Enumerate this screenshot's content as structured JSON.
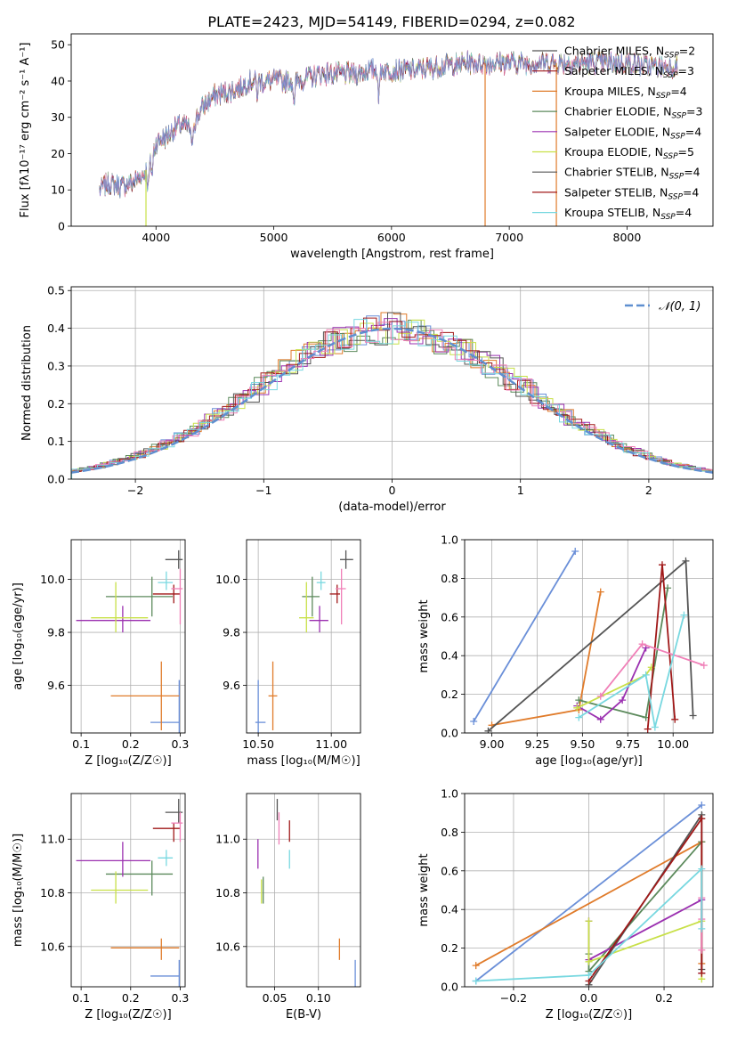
{
  "title": "PLATE=2423, MJD=54149, FIBERID=0294, z=0.082",
  "colors": [
    "#6a8fd8",
    "#e07b2a",
    "#5c8a5c",
    "#9b30b0",
    "#c8e048",
    "#555555",
    "#a01818",
    "#f080b8",
    "#78d8e0"
  ],
  "chart_data": [
    {
      "id": "spectrum",
      "type": "line",
      "xlabel": "wavelength [Angstrom, rest frame]",
      "ylabel": "Flux [fλ10⁻¹⁷ erg cm⁻² s⁻¹ A⁻¹]",
      "xlim": [
        3280,
        8730
      ],
      "ylim": [
        0,
        53
      ],
      "xticks": [
        4000,
        5000,
        6000,
        7000,
        8000
      ],
      "yticks": [
        0,
        10,
        20,
        30,
        40,
        50
      ],
      "grid": false,
      "legend_position": "right",
      "legend": [
        {
          "label": "Chabrier MILES, N",
          "sub": "SSP",
          "tail": "=2",
          "color": "#555555"
        },
        {
          "label": "Salpeter MILES, N",
          "sub": "SSP",
          "tail": "=3",
          "color": "#a01818"
        },
        {
          "label": "Kroupa MILES, N",
          "sub": "SSP",
          "tail": "=4",
          "color": "#e07b2a"
        },
        {
          "label": "Chabrier ELODIE, N",
          "sub": "SSP",
          "tail": "=3",
          "color": "#5c8a5c"
        },
        {
          "label": "Salpeter ELODIE, N",
          "sub": "SSP",
          "tail": "=4",
          "color": "#9b30b0"
        },
        {
          "label": "Kroupa ELODIE, N",
          "sub": "SSP",
          "tail": "=5",
          "color": "#c8e048"
        },
        {
          "label": "Chabrier STELIB, N",
          "sub": "SSP",
          "tail": "=4",
          "color": "#555555"
        },
        {
          "label": "Salpeter STELIB, N",
          "sub": "SSP",
          "tail": "=4",
          "color": "#a01818"
        },
        {
          "label": "Kroupa STELIB, N",
          "sub": "SSP",
          "tail": "=4",
          "color": "#78d8e0"
        }
      ],
      "continuum": [
        [
          3520,
          10
        ],
        [
          3600,
          12
        ],
        [
          3700,
          11
        ],
        [
          3800,
          12
        ],
        [
          3880,
          14
        ],
        [
          3950,
          17
        ],
        [
          4000,
          23
        ],
        [
          4100,
          25
        ],
        [
          4200,
          28
        ],
        [
          4300,
          27
        ],
        [
          4400,
          33
        ],
        [
          4500,
          36
        ],
        [
          4600,
          37
        ],
        [
          4700,
          38
        ],
        [
          4800,
          40
        ],
        [
          4900,
          40
        ],
        [
          5000,
          40
        ],
        [
          5100,
          40
        ],
        [
          5200,
          40
        ],
        [
          5300,
          41
        ],
        [
          5400,
          42
        ],
        [
          5500,
          42
        ],
        [
          5600,
          42
        ],
        [
          5700,
          42
        ],
        [
          5800,
          43
        ],
        [
          5900,
          43
        ],
        [
          6000,
          43
        ],
        [
          6200,
          43
        ],
        [
          6400,
          44
        ],
        [
          6600,
          45
        ],
        [
          6800,
          45
        ],
        [
          7000,
          45
        ],
        [
          7200,
          45
        ],
        [
          7400,
          45
        ],
        [
          7600,
          45
        ],
        [
          7800,
          45
        ],
        [
          8000,
          45
        ],
        [
          8200,
          44
        ],
        [
          8430,
          44
        ]
      ],
      "absorption": [
        [
          3933,
          -6
        ],
        [
          3968,
          -5
        ],
        [
          4304,
          -7
        ],
        [
          4861,
          -4
        ],
        [
          5175,
          -8
        ],
        [
          5893,
          -9
        ],
        [
          6563,
          -2
        ]
      ],
      "dropouts": [
        [
          3915,
          "#c8e048"
        ],
        [
          6795,
          "#e07b2a"
        ],
        [
          7400,
          "#e07b2a"
        ]
      ]
    },
    {
      "id": "residuals",
      "type": "area",
      "xlabel": "(data-model)/error",
      "ylabel": "Normed distribution",
      "xlim": [
        -2.5,
        2.5
      ],
      "ylim": [
        0,
        0.51
      ],
      "xticks": [
        -2,
        -1,
        0,
        1,
        2
      ],
      "yticks": [
        0.0,
        0.1,
        0.2,
        0.3,
        0.4,
        0.5
      ],
      "grid": true,
      "legend": [
        {
          "label": "𝒩(0, 1)",
          "color": "#5f8fd0"
        }
      ],
      "legend_position": "top-right",
      "bin_width": 0.1
    },
    {
      "id": "age-vs-z",
      "type": "scatter",
      "xlabel": "Z [log₁₀(Z/Z☉)]",
      "ylabel": "age  [log₁₀(age/yr)]",
      "xlim": [
        0.08,
        0.31
      ],
      "ylim": [
        9.42,
        10.15
      ],
      "xticks": [
        0.1,
        0.2,
        0.3
      ],
      "yticks": [
        9.6,
        9.8,
        10.0
      ],
      "grid": true,
      "points": [
        {
          "x": 0.298,
          "y": 9.46,
          "xlo": 0.24,
          "xhi": 0.298,
          "ylo": 9.3,
          "yhi": 9.62,
          "c": 0
        },
        {
          "x": 0.262,
          "y": 9.56,
          "xlo": 0.16,
          "xhi": 0.298,
          "ylo": 9.43,
          "yhi": 9.69,
          "c": 1
        },
        {
          "x": 0.243,
          "y": 9.935,
          "xlo": 0.15,
          "xhi": 0.285,
          "ylo": 9.86,
          "yhi": 10.01,
          "c": 2
        },
        {
          "x": 0.184,
          "y": 9.845,
          "xlo": 0.09,
          "xhi": 0.24,
          "ylo": 9.8,
          "yhi": 9.9,
          "c": 3
        },
        {
          "x": 0.17,
          "y": 9.855,
          "xlo": 0.12,
          "xhi": 0.235,
          "ylo": 9.8,
          "yhi": 9.99,
          "c": 4
        },
        {
          "x": 0.297,
          "y": 10.075,
          "xlo": 0.27,
          "xhi": 0.305,
          "ylo": 10.04,
          "yhi": 10.11,
          "c": 5
        },
        {
          "x": 0.287,
          "y": 9.945,
          "xlo": 0.245,
          "xhi": 0.3,
          "ylo": 9.91,
          "yhi": 9.98,
          "c": 6
        },
        {
          "x": 0.3,
          "y": 9.965,
          "xlo": 0.282,
          "xhi": 0.305,
          "ylo": 9.83,
          "yhi": 10.04,
          "c": 7
        },
        {
          "x": 0.272,
          "y": 9.988,
          "xlo": 0.255,
          "xhi": 0.285,
          "ylo": 9.96,
          "yhi": 10.03,
          "c": 8
        }
      ]
    },
    {
      "id": "age-vs-mass",
      "type": "scatter",
      "xlabel": "mass [log₁₀(M/M☉)]",
      "ylabel": "",
      "xlim": [
        10.42,
        11.2
      ],
      "ylim": [
        9.42,
        10.15
      ],
      "xticks": [
        10.5,
        11.0
      ],
      "yticks": [
        9.6,
        9.8,
        10.0
      ],
      "grid": true,
      "points": [
        {
          "x": 10.5,
          "y": 9.46,
          "xlo": 10.48,
          "xhi": 10.55,
          "ylo": 9.31,
          "yhi": 9.62,
          "c": 0
        },
        {
          "x": 10.6,
          "y": 9.56,
          "xlo": 10.57,
          "xhi": 10.63,
          "ylo": 9.43,
          "yhi": 9.69,
          "c": 1
        },
        {
          "x": 10.87,
          "y": 9.935,
          "xlo": 10.8,
          "xhi": 10.92,
          "ylo": 9.86,
          "yhi": 10.01,
          "c": 2
        },
        {
          "x": 10.92,
          "y": 9.845,
          "xlo": 10.85,
          "xhi": 10.98,
          "ylo": 9.8,
          "yhi": 9.9,
          "c": 3
        },
        {
          "x": 10.83,
          "y": 9.855,
          "xlo": 10.78,
          "xhi": 10.88,
          "ylo": 9.8,
          "yhi": 9.99,
          "c": 4
        },
        {
          "x": 11.1,
          "y": 10.075,
          "xlo": 11.06,
          "xhi": 11.15,
          "ylo": 10.04,
          "yhi": 10.11,
          "c": 5
        },
        {
          "x": 11.04,
          "y": 9.945,
          "xlo": 10.99,
          "xhi": 11.06,
          "ylo": 9.91,
          "yhi": 9.98,
          "c": 6
        },
        {
          "x": 11.07,
          "y": 9.965,
          "xlo": 11.03,
          "xhi": 11.1,
          "ylo": 9.83,
          "yhi": 10.04,
          "c": 7
        },
        {
          "x": 10.93,
          "y": 9.988,
          "xlo": 10.9,
          "xhi": 10.96,
          "ylo": 9.96,
          "yhi": 10.03,
          "c": 8
        }
      ]
    },
    {
      "id": "mass-weight-vs-age",
      "type": "line",
      "xlabel": "age  [log₁₀(age/yr)]",
      "ylabel": "mass weight",
      "xlim": [
        8.85,
        10.22
      ],
      "ylim": [
        0,
        1.0
      ],
      "xticks": [
        9.0,
        9.25,
        9.5,
        9.75,
        10.0
      ],
      "yticks": [
        0.0,
        0.2,
        0.4,
        0.6,
        0.8,
        1.0
      ],
      "grid": true,
      "series": [
        {
          "c": 0,
          "points": [
            [
              8.9,
              0.06
            ],
            [
              9.46,
              0.94
            ]
          ]
        },
        {
          "c": 1,
          "points": [
            [
              9.0,
              0.04
            ],
            [
              9.48,
              0.12
            ],
            [
              9.6,
              0.73
            ]
          ]
        },
        {
          "c": 2,
          "points": [
            [
              9.48,
              0.17
            ],
            [
              9.85,
              0.08
            ],
            [
              9.97,
              0.75
            ]
          ]
        },
        {
          "c": 3,
          "points": [
            [
              9.47,
              0.14
            ],
            [
              9.6,
              0.07
            ],
            [
              9.72,
              0.17
            ],
            [
              9.85,
              0.44
            ]
          ]
        },
        {
          "c": 4,
          "points": [
            [
              9.47,
              0.13
            ],
            [
              9.85,
              0.3
            ],
            [
              9.88,
              0.34
            ]
          ]
        },
        {
          "c": 5,
          "points": [
            [
              8.98,
              0.01
            ],
            [
              10.07,
              0.89
            ],
            [
              10.11,
              0.09
            ]
          ]
        },
        {
          "c": 6,
          "points": [
            [
              9.86,
              0.02
            ],
            [
              9.94,
              0.87
            ],
            [
              10.01,
              0.07
            ]
          ]
        },
        {
          "c": 7,
          "points": [
            [
              9.6,
              0.19
            ],
            [
              9.83,
              0.46
            ],
            [
              10.17,
              0.35
            ]
          ]
        },
        {
          "c": 8,
          "points": [
            [
              9.48,
              0.08
            ],
            [
              9.85,
              0.3
            ],
            [
              9.9,
              0.03
            ],
            [
              10.06,
              0.61
            ]
          ]
        }
      ]
    },
    {
      "id": "mass-vs-z",
      "type": "scatter",
      "xlabel": "Z [log₁₀(Z/Z☉)]",
      "ylabel": "mass [log₁₀(M/M☉)]",
      "xlim": [
        0.08,
        0.31
      ],
      "ylim": [
        10.45,
        11.17
      ],
      "xticks": [
        0.1,
        0.2,
        0.3
      ],
      "yticks": [
        10.6,
        10.8,
        11.0
      ],
      "grid": true,
      "points": [
        {
          "x": 0.298,
          "y": 10.49,
          "xlo": 0.24,
          "xhi": 0.298,
          "ylo": 10.45,
          "yhi": 10.55,
          "c": 0
        },
        {
          "x": 0.262,
          "y": 10.595,
          "xlo": 0.16,
          "xhi": 0.298,
          "ylo": 10.55,
          "yhi": 10.63,
          "c": 1
        },
        {
          "x": 0.243,
          "y": 10.87,
          "xlo": 0.15,
          "xhi": 0.285,
          "ylo": 10.79,
          "yhi": 10.92,
          "c": 2
        },
        {
          "x": 0.184,
          "y": 10.92,
          "xlo": 0.09,
          "xhi": 0.24,
          "ylo": 10.86,
          "yhi": 10.99,
          "c": 3
        },
        {
          "x": 0.17,
          "y": 10.81,
          "xlo": 0.12,
          "xhi": 0.235,
          "ylo": 10.76,
          "yhi": 10.88,
          "c": 4
        },
        {
          "x": 0.297,
          "y": 11.1,
          "xlo": 0.27,
          "xhi": 0.305,
          "ylo": 11.06,
          "yhi": 11.15,
          "c": 5
        },
        {
          "x": 0.287,
          "y": 11.04,
          "xlo": 0.245,
          "xhi": 0.3,
          "ylo": 10.99,
          "yhi": 11.06,
          "c": 6
        },
        {
          "x": 0.3,
          "y": 11.06,
          "xlo": 0.282,
          "xhi": 0.305,
          "ylo": 10.99,
          "yhi": 11.1,
          "c": 7
        },
        {
          "x": 0.272,
          "y": 10.93,
          "xlo": 0.255,
          "xhi": 0.285,
          "ylo": 10.9,
          "yhi": 10.96,
          "c": 8
        }
      ]
    },
    {
      "id": "mass-vs-ebv",
      "type": "scatter",
      "xlabel": "E(B-V)",
      "ylabel": "",
      "xlim": [
        0.018,
        0.148
      ],
      "ylim": [
        10.45,
        11.17
      ],
      "xticks": [
        0.05,
        0.1
      ],
      "yticks": [
        10.6,
        10.8,
        11.0
      ],
      "grid": true,
      "points": [
        {
          "x": 0.142,
          "y": 10.5,
          "ylo": 10.45,
          "yhi": 10.55,
          "c": 0
        },
        {
          "x": 0.124,
          "y": 10.59,
          "ylo": 10.55,
          "yhi": 10.63,
          "c": 1
        },
        {
          "x": 0.037,
          "y": 10.8,
          "ylo": 10.76,
          "yhi": 10.86,
          "c": 2
        },
        {
          "x": 0.031,
          "y": 10.93,
          "ylo": 10.89,
          "yhi": 11.0,
          "c": 3
        },
        {
          "x": 0.035,
          "y": 10.79,
          "ylo": 10.76,
          "yhi": 10.85,
          "c": 4
        },
        {
          "x": 0.053,
          "y": 11.11,
          "ylo": 11.07,
          "yhi": 11.15,
          "c": 5
        },
        {
          "x": 0.067,
          "y": 11.03,
          "ylo": 10.99,
          "yhi": 11.07,
          "c": 6
        },
        {
          "x": 0.055,
          "y": 11.03,
          "ylo": 10.98,
          "yhi": 11.1,
          "c": 7
        },
        {
          "x": 0.067,
          "y": 10.93,
          "ylo": 10.89,
          "yhi": 10.96,
          "c": 8
        }
      ]
    },
    {
      "id": "mass-weight-vs-z",
      "type": "line",
      "xlabel": "Z [log₁₀(Z/Z☉)]",
      "ylabel": "mass weight",
      "xlim": [
        -0.33,
        0.33
      ],
      "ylim": [
        0,
        1.0
      ],
      "xticks": [
        -0.2,
        0.0,
        0.2
      ],
      "yticks": [
        0.0,
        0.2,
        0.4,
        0.6,
        0.8,
        1.0
      ],
      "grid": true,
      "series": [
        {
          "c": 0,
          "points": [
            [
              -0.3,
              0.03
            ],
            [
              0.3,
              0.94
            ]
          ]
        },
        {
          "c": 1,
          "points": [
            [
              -0.3,
              0.11
            ],
            [
              0.3,
              0.75
            ],
            [
              0.3,
              0.12
            ]
          ]
        },
        {
          "c": 2,
          "points": [
            [
              0.0,
              0.17
            ],
            [
              0.0,
              0.08
            ],
            [
              0.3,
              0.75
            ]
          ]
        },
        {
          "c": 3,
          "points": [
            [
              0.0,
              0.34
            ],
            [
              0.0,
              0.14
            ],
            [
              0.3,
              0.45
            ],
            [
              0.3,
              0.07
            ]
          ]
        },
        {
          "c": 4,
          "points": [
            [
              0.0,
              0.34
            ],
            [
              0.0,
              0.13
            ],
            [
              0.3,
              0.34
            ],
            [
              0.3,
              0.04
            ]
          ]
        },
        {
          "c": 5,
          "points": [
            [
              0.0,
              0.01
            ],
            [
              0.3,
              0.89
            ],
            [
              0.3,
              0.09
            ]
          ]
        },
        {
          "c": 6,
          "points": [
            [
              0.0,
              0.03
            ],
            [
              0.3,
              0.87
            ],
            [
              0.3,
              0.07
            ]
          ]
        },
        {
          "c": 7,
          "points": [
            [
              0.3,
              0.46
            ],
            [
              0.3,
              0.35
            ],
            [
              0.3,
              0.19
            ]
          ]
        },
        {
          "c": 8,
          "points": [
            [
              -0.3,
              0.03
            ],
            [
              0.0,
              0.06
            ],
            [
              0.3,
              0.61
            ],
            [
              0.3,
              0.3
            ]
          ]
        }
      ]
    }
  ]
}
